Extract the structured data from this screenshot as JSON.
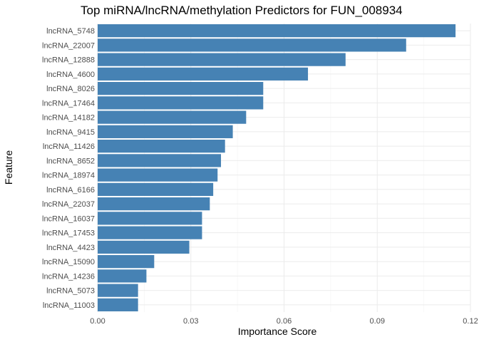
{
  "chart_data": {
    "type": "bar",
    "orientation": "horizontal",
    "title": "Top miRNA/lncRNA/methylation Predictors for FUN_008934",
    "xlabel": "Importance Score",
    "ylabel": "Feature",
    "xlim": [
      0,
      0.12
    ],
    "xticks": [
      0.0,
      0.03,
      0.06,
      0.09,
      0.12
    ],
    "xtick_labels": [
      "0.00",
      "0.03",
      "0.06",
      "0.09",
      "0.12"
    ],
    "grid": true,
    "bar_color": "#4682B4",
    "categories": [
      "lncRNA_5748",
      "lncRNA_22007",
      "lncRNA_12888",
      "lncRNA_4600",
      "lncRNA_8026",
      "lncRNA_17464",
      "lncRNA_14182",
      "lncRNA_9415",
      "lncRNA_11426",
      "lncRNA_8652",
      "lncRNA_18974",
      "lncRNA_6166",
      "lncRNA_22037",
      "lncRNA_16037",
      "lncRNA_17453",
      "lncRNA_4423",
      "lncRNA_15090",
      "lncRNA_14236",
      "lncRNA_5073",
      "lncRNA_11003"
    ],
    "values": [
      0.1152,
      0.0993,
      0.0798,
      0.0677,
      0.0533,
      0.0533,
      0.0478,
      0.0435,
      0.041,
      0.0397,
      0.0386,
      0.0372,
      0.0361,
      0.0336,
      0.0336,
      0.0295,
      0.0182,
      0.0157,
      0.013,
      0.013
    ]
  }
}
